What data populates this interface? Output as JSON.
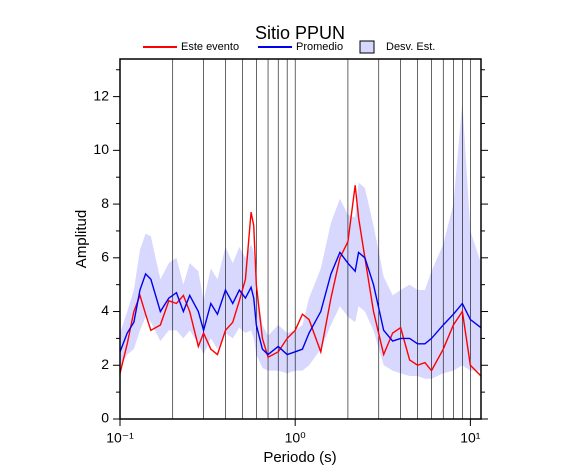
{
  "chart_data": {
    "type": "line",
    "title": "Sitio PPUN",
    "xlabel": "Periodo (s)",
    "ylabel": "Amplitud",
    "log_x": true,
    "xlim": [
      0.1,
      11.5
    ],
    "ylim": [
      0,
      13.4
    ],
    "xticks": [
      {
        "value": 0.1,
        "label": "10⁻¹"
      },
      {
        "value": 1,
        "label": "10⁰"
      },
      {
        "value": 10,
        "label": "10¹"
      }
    ],
    "x_minor_ticks": [
      0.2,
      0.3,
      0.4,
      0.5,
      0.6,
      0.7,
      0.8,
      0.9,
      2,
      3,
      4,
      5,
      6,
      7,
      8,
      9
    ],
    "yticks": [
      0,
      2,
      4,
      6,
      8,
      10,
      12
    ],
    "y_minor_ticks": [
      1,
      3,
      5,
      7,
      9,
      11,
      13
    ],
    "x": [
      0.1,
      0.11,
      0.12,
      0.13,
      0.14,
      0.15,
      0.17,
      0.19,
      0.21,
      0.23,
      0.25,
      0.28,
      0.3,
      0.33,
      0.36,
      0.4,
      0.44,
      0.48,
      0.52,
      0.56,
      0.58,
      0.6,
      0.65,
      0.7,
      0.8,
      0.9,
      1.0,
      1.1,
      1.2,
      1.4,
      1.6,
      1.8,
      2.0,
      2.2,
      2.3,
      2.5,
      2.8,
      3.2,
      3.6,
      4,
      4.5,
      5,
      5.5,
      6,
      7,
      8,
      9,
      10,
      11.5
    ],
    "series": [
      {
        "name": "Este evento",
        "color": "#ff0000",
        "values": [
          1.7,
          2.8,
          4.0,
          4.6,
          3.9,
          3.3,
          3.5,
          4.4,
          4.3,
          4.6,
          4.0,
          2.7,
          3.2,
          2.6,
          2.4,
          3.3,
          3.6,
          4.4,
          5.2,
          7.7,
          7.2,
          5.0,
          3.0,
          2.3,
          2.5,
          3.0,
          3.3,
          3.9,
          3.7,
          2.5,
          4.5,
          6.0,
          6.6,
          8.7,
          7.5,
          6.0,
          4.0,
          2.4,
          3.2,
          3.4,
          2.2,
          2.0,
          2.1,
          1.8,
          2.6,
          3.5,
          4.0,
          2.0,
          1.6
        ]
      },
      {
        "name": "Promedio",
        "color": "#0000ee",
        "values": [
          2.5,
          3.2,
          3.6,
          4.8,
          5.4,
          5.2,
          4.0,
          4.5,
          4.7,
          4.0,
          4.6,
          4.0,
          3.3,
          4.3,
          3.9,
          4.8,
          4.3,
          4.8,
          4.5,
          4.9,
          4.5,
          3.5,
          2.6,
          2.4,
          2.7,
          2.4,
          2.5,
          2.6,
          3.2,
          4.0,
          5.4,
          6.2,
          5.8,
          5.5,
          6.2,
          6.0,
          5.0,
          3.3,
          2.9,
          3.0,
          3.0,
          2.8,
          2.8,
          3.0,
          3.5,
          3.9,
          4.3,
          3.7,
          3.4
        ]
      }
    ],
    "band": {
      "name": "Desv. Est.",
      "color": "#d8d8ff",
      "lower": [
        1.9,
        2.4,
        2.6,
        3.3,
        3.8,
        3.6,
        2.9,
        3.3,
        3.3,
        3.0,
        3.3,
        2.8,
        2.4,
        3.0,
        2.6,
        3.2,
        3.0,
        3.4,
        3.2,
        3.3,
        3.0,
        2.4,
        1.9,
        1.8,
        1.8,
        1.7,
        1.8,
        1.8,
        2.0,
        2.6,
        3.5,
        4.2,
        3.8,
        3.6,
        4.2,
        4.0,
        3.3,
        2.0,
        1.8,
        1.7,
        1.6,
        1.6,
        1.5,
        1.5,
        1.7,
        1.8,
        2.0,
        1.8,
        1.8
      ],
      "upper": [
        3.2,
        4.0,
        4.8,
        6.3,
        6.9,
        6.8,
        5.2,
        5.8,
        6.0,
        5.0,
        5.8,
        5.5,
        4.4,
        5.6,
        5.2,
        6.4,
        5.8,
        6.4,
        6.0,
        6.5,
        6.2,
        4.9,
        3.5,
        3.1,
        3.5,
        3.2,
        3.3,
        3.5,
        4.5,
        5.6,
        7.3,
        8.2,
        7.6,
        7.5,
        8.8,
        8.6,
        7.2,
        5.3,
        4.6,
        4.8,
        5.0,
        4.8,
        4.8,
        5.5,
        6.5,
        8.0,
        11.8,
        7.0,
        5.8
      ]
    }
  }
}
